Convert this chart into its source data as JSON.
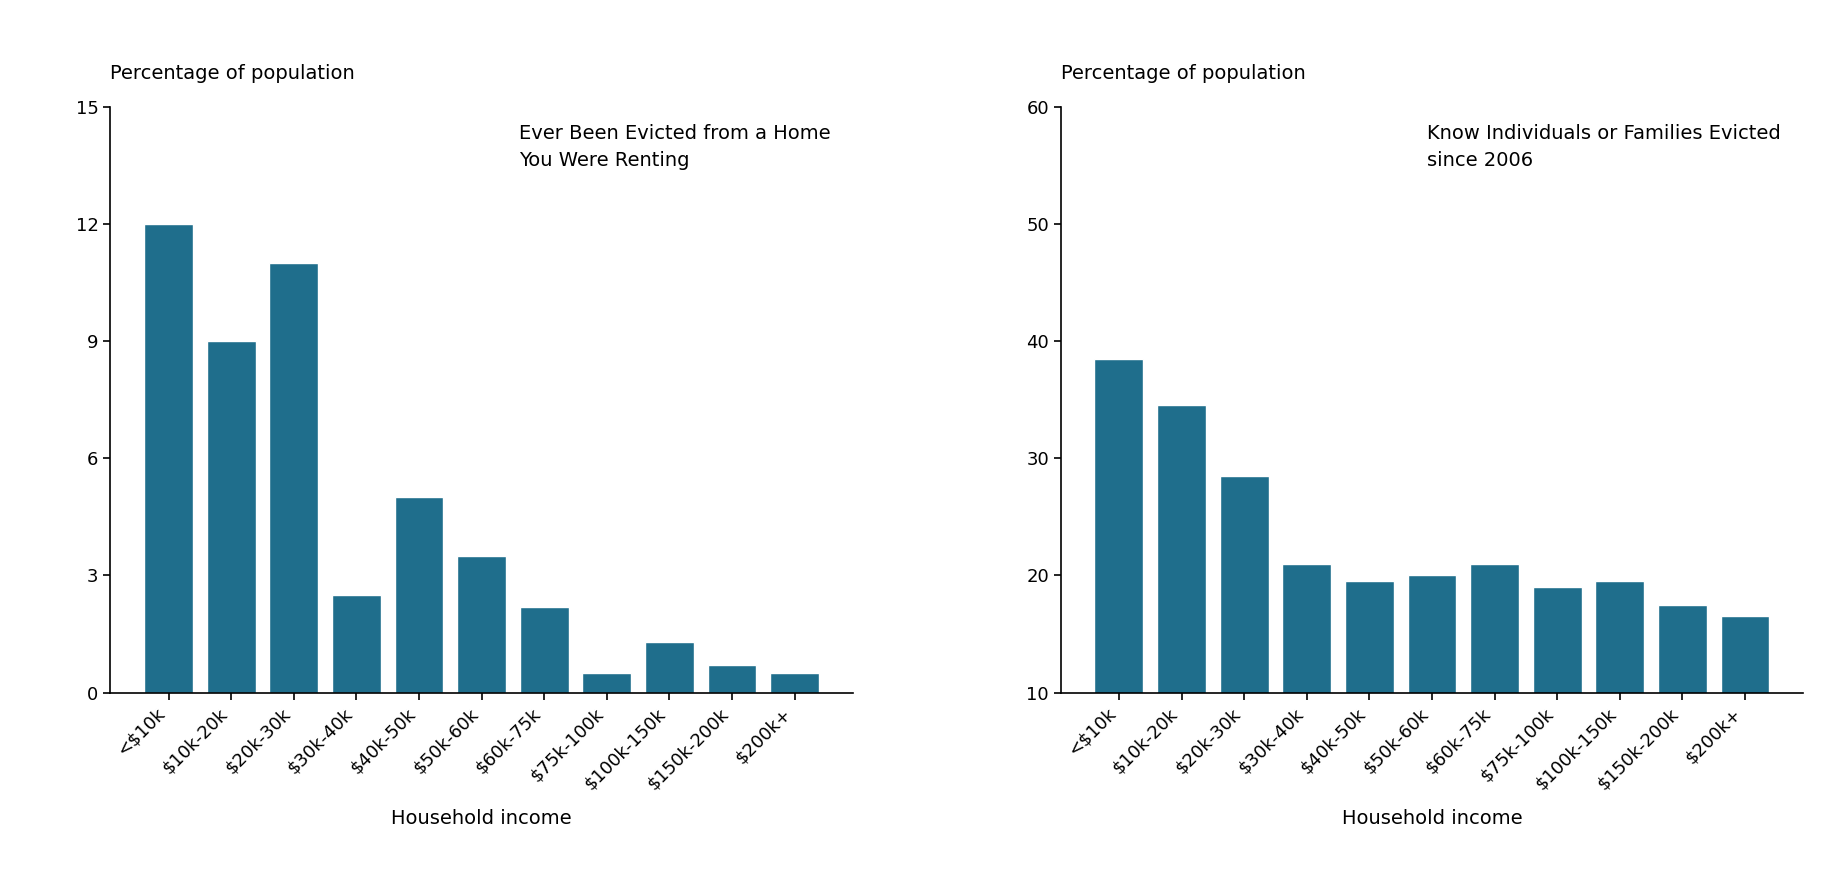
{
  "categories": [
    "<$10k",
    "$10k-20k",
    "$20k-30k",
    "$30k-40k",
    "$40k-50k",
    "$50k-60k",
    "$60k-75k",
    "$75k-100k",
    "$100k-150k",
    "$150k-200k",
    "$200k+"
  ],
  "values1": [
    12.0,
    9.0,
    11.0,
    2.5,
    5.0,
    3.5,
    2.2,
    0.5,
    1.3,
    0.7,
    0.5
  ],
  "values2": [
    38.5,
    34.5,
    28.5,
    21.0,
    19.5,
    20.0,
    21.0,
    19.0,
    19.5,
    17.5,
    16.5
  ],
  "bar_color": "#1f6e8c",
  "ylabel": "Percentage of population",
  "xlabel": "Household income",
  "title1": "Ever Been Evicted from a Home\nYou Were Renting",
  "title2": "Know Individuals or Families Evicted\nsince 2006",
  "ylim1": [
    0,
    15
  ],
  "ylim2": [
    10,
    60
  ],
  "yticks1": [
    0,
    3,
    6,
    9,
    12,
    15
  ],
  "yticks2": [
    10,
    20,
    30,
    40,
    50,
    60
  ],
  "background_color": "#ffffff",
  "label_fontsize": 14,
  "tick_fontsize": 13,
  "annotation_fontsize": 14
}
